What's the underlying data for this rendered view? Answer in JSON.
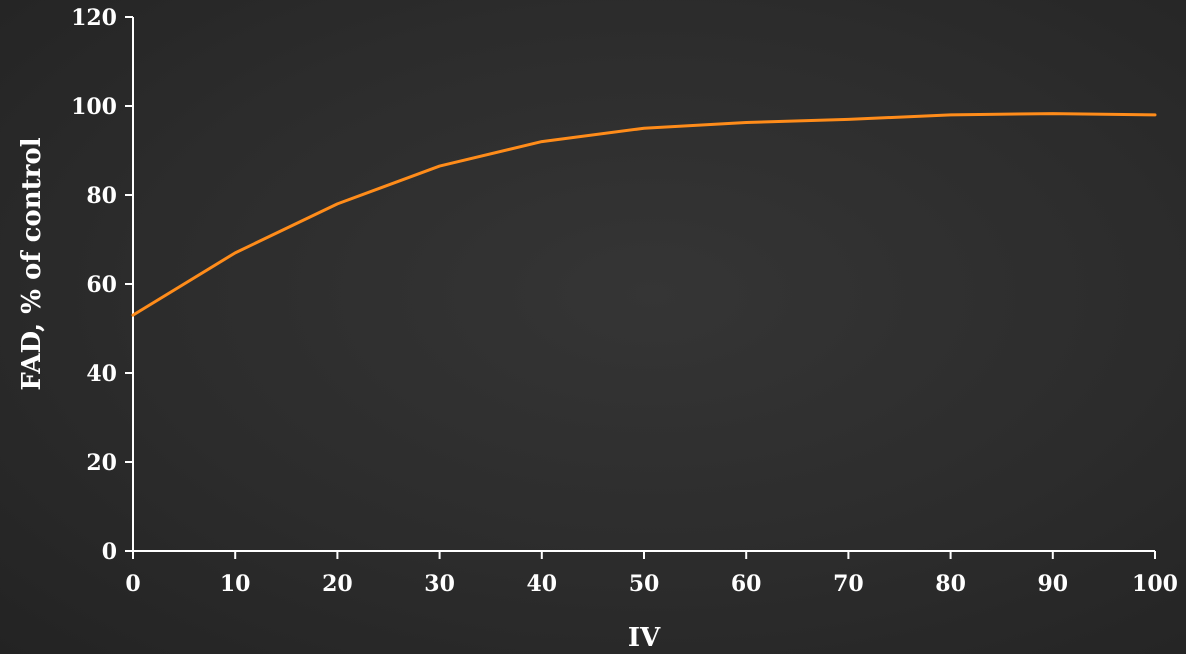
{
  "chart_data": {
    "type": "line",
    "title": "",
    "xlabel": "IV",
    "ylabel": "FAD, % of control",
    "xlim": [
      0,
      100
    ],
    "ylim": [
      0,
      120
    ],
    "x_ticks": [
      0,
      10,
      20,
      30,
      40,
      50,
      60,
      70,
      80,
      90,
      100
    ],
    "y_ticks": [
      0,
      20,
      40,
      60,
      80,
      100,
      120
    ],
    "grid": false,
    "legend": "none",
    "series": [
      {
        "color": "#ff8c1a",
        "x": [
          0,
          10,
          20,
          30,
          40,
          50,
          60,
          70,
          80,
          90,
          100
        ],
        "y": [
          53,
          67,
          78,
          86.5,
          92,
          95,
          96.3,
          97,
          98,
          98.3,
          98
        ]
      }
    ]
  }
}
